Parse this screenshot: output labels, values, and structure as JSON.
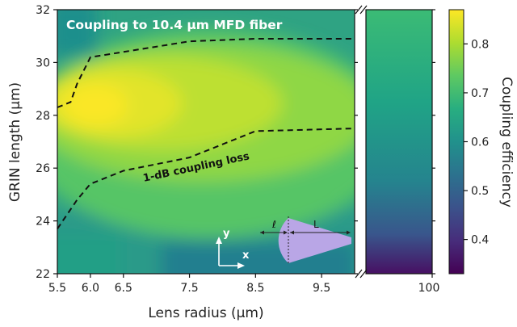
{
  "chart_data": {
    "type": "heatmap",
    "title": "Coupling to 10.4 µm MFD fiber",
    "xlabel": "Lens radius (μm)",
    "ylabel": "GRIN length (μm)",
    "xlim": [
      5.5,
      10.0
    ],
    "ylim": [
      22,
      32
    ],
    "xticks": [
      "5.5",
      "6.0",
      "6.5",
      "7.5",
      "8.5",
      "9.5"
    ],
    "xtick_values": [
      5.5,
      6.0,
      6.5,
      7.5,
      8.5,
      9.5
    ],
    "broken_axis_tick": "100",
    "yticks": [
      "22",
      "24",
      "26",
      "28",
      "30",
      "32"
    ],
    "ytick_values": [
      22,
      24,
      26,
      28,
      30,
      32
    ],
    "colorbar": {
      "label": "Coupling efficiency",
      "range": [
        0.33,
        0.87
      ],
      "ticks": [
        "0.4",
        "0.5",
        "0.6",
        "0.7",
        "0.8"
      ],
      "tick_values": [
        0.4,
        0.5,
        0.6,
        0.7,
        0.8
      ],
      "colormap": "viridis"
    },
    "contour": {
      "label": "1-dB coupling loss",
      "upper_boundary": [
        [
          5.5,
          28.3
        ],
        [
          5.7,
          28.5
        ],
        [
          5.8,
          29.2
        ],
        [
          6.0,
          30.2
        ],
        [
          6.5,
          30.4
        ],
        [
          7.5,
          30.8
        ],
        [
          8.5,
          30.9
        ],
        [
          10.0,
          30.9
        ]
      ],
      "lower_boundary": [
        [
          5.5,
          23.7
        ],
        [
          5.8,
          24.8
        ],
        [
          6.0,
          25.4
        ],
        [
          6.5,
          25.9
        ],
        [
          7.5,
          26.4
        ],
        [
          8.5,
          27.4
        ],
        [
          10.0,
          27.5
        ]
      ]
    },
    "inset": {
      "label_l": "ℓ",
      "label_L": "L",
      "axis_x": "x",
      "axis_y": "y"
    },
    "right_panel_values": [
      {
        "y": 32,
        "v": 0.78
      },
      {
        "y": 29,
        "v": 0.7
      },
      {
        "y": 26,
        "v": 0.61
      },
      {
        "y": 24,
        "v": 0.52
      },
      {
        "y": 22,
        "v": 0.36
      }
    ]
  },
  "colors": {
    "low": "#440154",
    "high": "#fde725",
    "inset_shape": "#b9a6e6",
    "contour": "#111111"
  }
}
